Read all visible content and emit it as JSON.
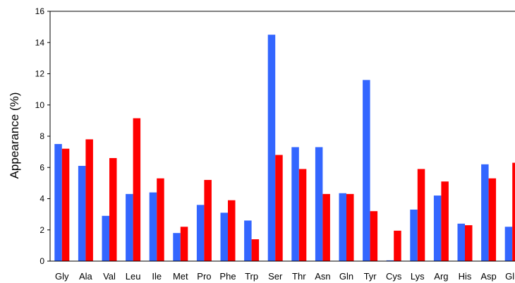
{
  "chart_data": {
    "type": "bar",
    "ylabel": "Appearance (%)",
    "ylim": [
      0,
      16
    ],
    "yticks": [
      "0",
      "2",
      "4",
      "6",
      "8",
      "10",
      "12",
      "14",
      "16"
    ],
    "grid": false,
    "legend": "none",
    "categories": [
      "Gly",
      "Ala",
      "Val",
      "Leu",
      "Ile",
      "Met",
      "Pro",
      "Phe",
      "Trp",
      "Ser",
      "Thr",
      "Asn",
      "Gln",
      "Tyr",
      "Cys",
      "Lys",
      "Arg",
      "His",
      "Asp",
      "Glu"
    ],
    "series": [
      {
        "color": "#3366ff",
        "values": [
          7.5,
          6.1,
          2.9,
          4.3,
          4.4,
          1.8,
          3.6,
          3.1,
          2.6,
          14.5,
          7.3,
          7.3,
          4.35,
          11.6,
          0.05,
          3.3,
          4.2,
          2.4,
          6.2,
          2.2
        ]
      },
      {
        "color": "#ff0000",
        "values": [
          7.2,
          7.8,
          6.6,
          9.15,
          5.3,
          2.2,
          5.2,
          3.9,
          1.4,
          6.8,
          5.9,
          4.3,
          4.3,
          3.2,
          1.95,
          5.9,
          5.1,
          2.3,
          5.3,
          6.3
        ]
      }
    ]
  }
}
